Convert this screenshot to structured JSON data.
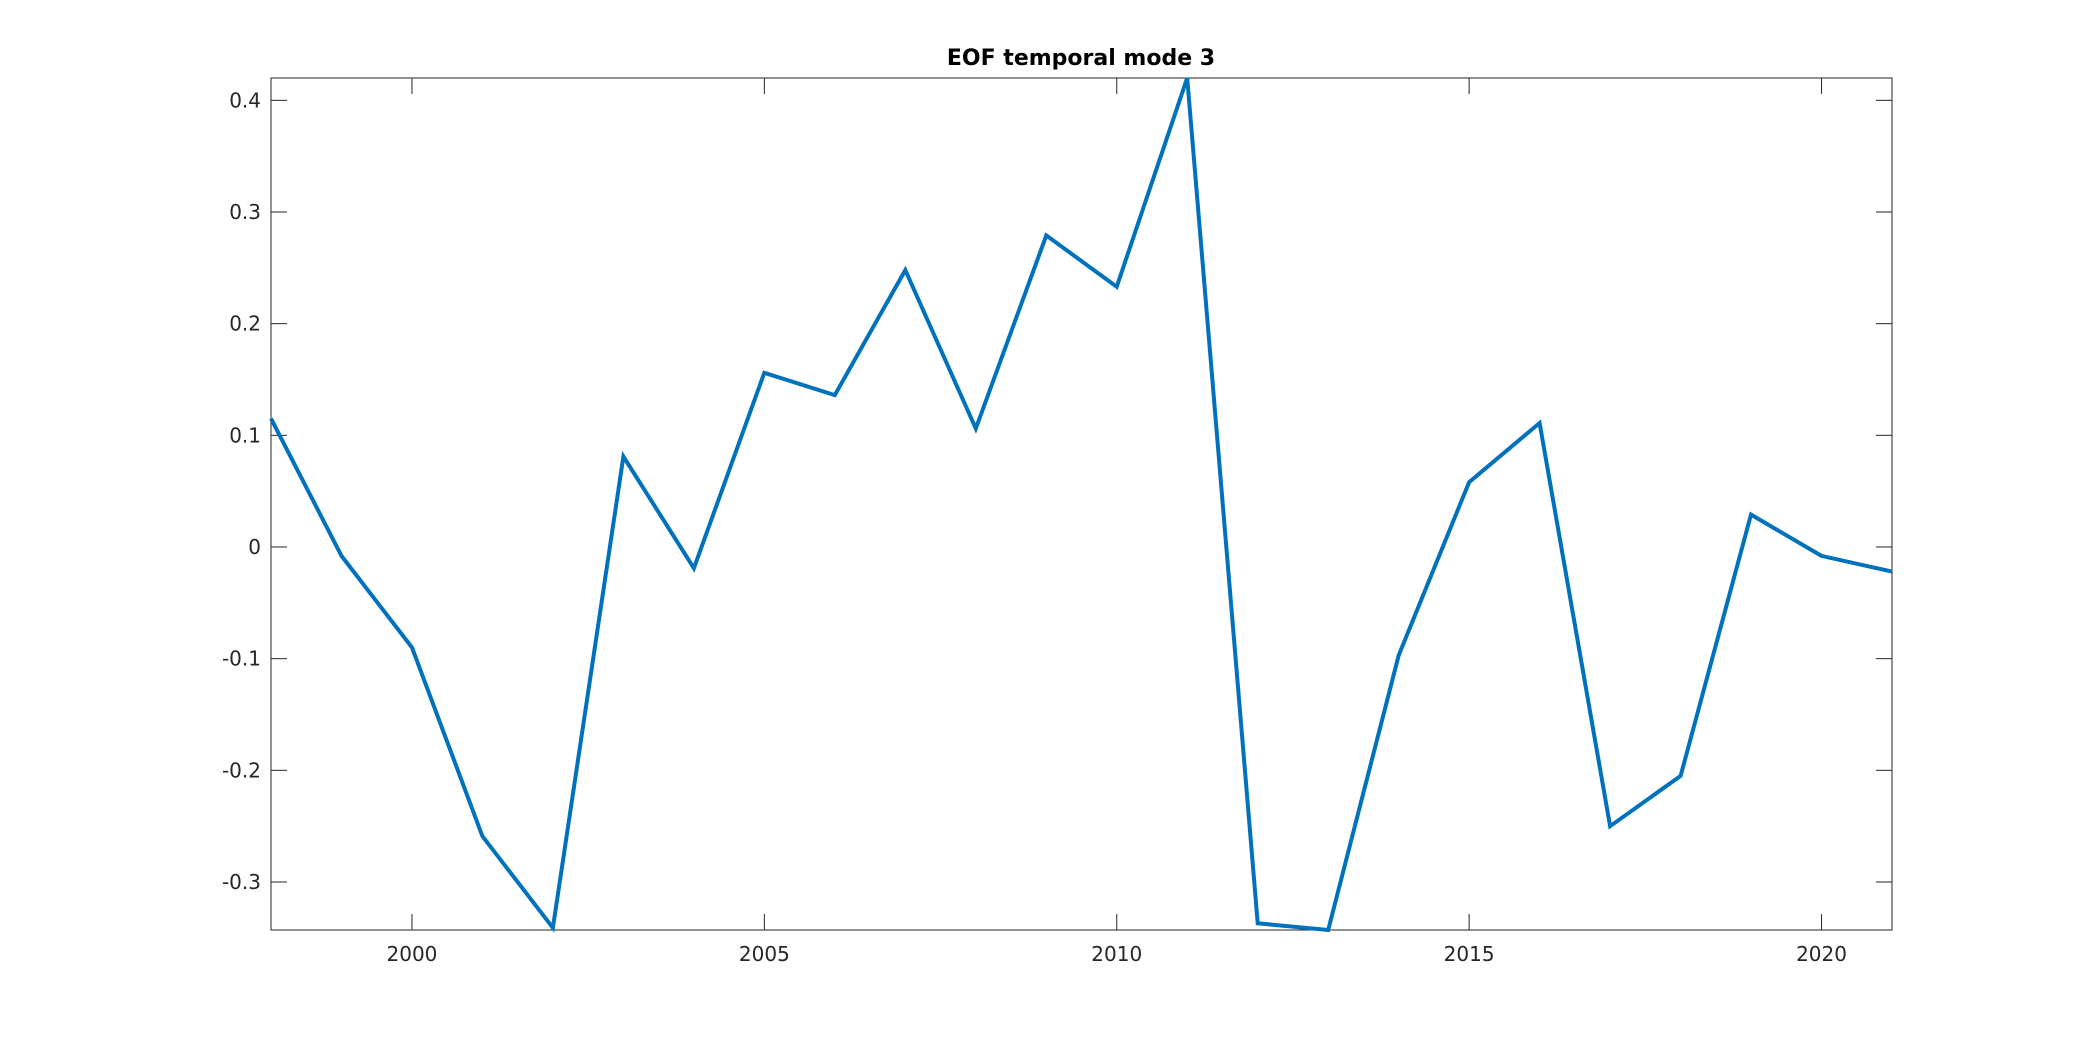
{
  "chart_data": {
    "type": "line",
    "title": "EOF temporal mode 3",
    "xlabel": "",
    "ylabel": "",
    "xlim": [
      1998,
      2021
    ],
    "ylim": [
      -0.343,
      0.42
    ],
    "x_ticks": [
      2000,
      2005,
      2010,
      2015,
      2020
    ],
    "x_tick_labels": [
      "2000",
      "2005",
      "2010",
      "2015",
      "2020"
    ],
    "y_ticks": [
      -0.3,
      -0.2,
      -0.1,
      0,
      0.1,
      0.2,
      0.3,
      0.4
    ],
    "y_tick_labels": [
      "-0.3",
      "-0.2",
      "-0.1",
      "0",
      "0.1",
      "0.2",
      "0.3",
      "0.4"
    ],
    "grid": false,
    "series": [
      {
        "color": "#0072BD",
        "x": [
          1998,
          1999,
          2000,
          2001,
          2002,
          2003,
          2004,
          2005,
          2006,
          2007,
          2008,
          2009,
          2010,
          2011,
          2012,
          2013,
          2014,
          2015,
          2016,
          2017,
          2018,
          2019,
          2020,
          2021
        ],
        "y": [
          0.115,
          -0.008,
          -0.09,
          -0.259,
          -0.341,
          0.081,
          -0.019,
          0.156,
          0.136,
          0.248,
          0.106,
          0.279,
          0.233,
          0.42,
          -0.337,
          -0.343,
          -0.097,
          0.058,
          0.111,
          -0.25,
          -0.205,
          0.029,
          -0.008,
          -0.022
        ]
      }
    ]
  }
}
